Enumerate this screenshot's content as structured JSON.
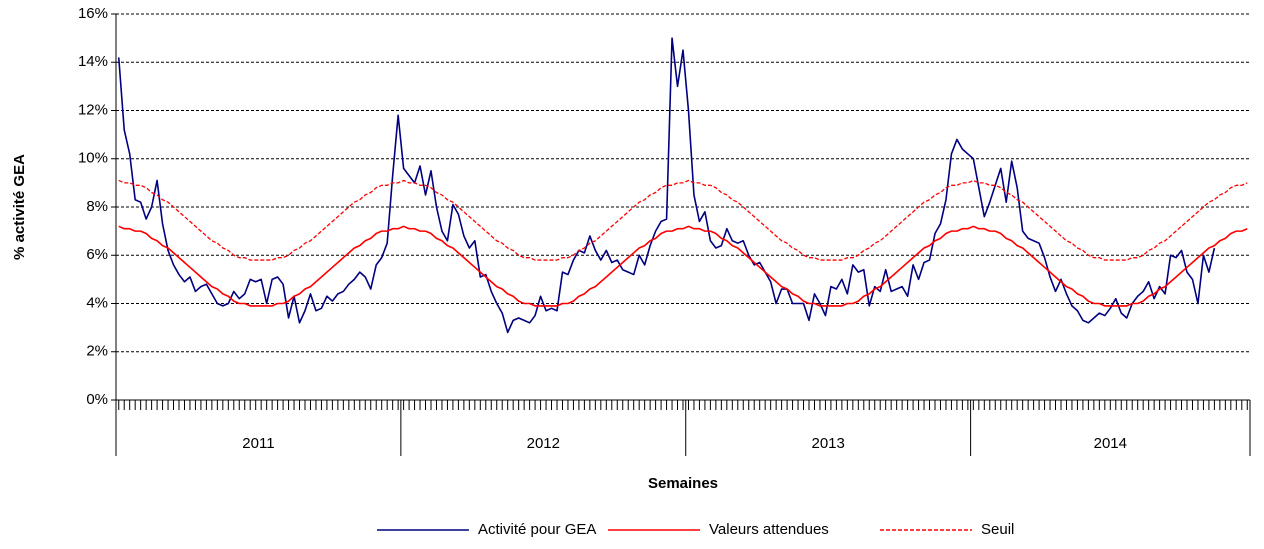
{
  "chart_data": {
    "type": "line",
    "y_label": "% activité GEA",
    "x_label": "Semaines",
    "ylim": [
      0,
      16
    ],
    "yticks": [
      {
        "value": 0,
        "label": "0%"
      },
      {
        "value": 2,
        "label": "2%"
      },
      {
        "value": 4,
        "label": "4%"
      },
      {
        "value": 6,
        "label": "6%"
      },
      {
        "value": 8,
        "label": "8%"
      },
      {
        "value": 10,
        "label": "10%"
      },
      {
        "value": 12,
        "label": "12%"
      },
      {
        "value": 14,
        "label": "14%"
      },
      {
        "value": 16,
        "label": "16%"
      }
    ],
    "grid": true,
    "legend": "bottom",
    "groups": [
      {
        "label": "2011",
        "count": 52
      },
      {
        "label": "2012",
        "count": 52
      },
      {
        "label": "2013",
        "count": 52
      },
      {
        "label": "2014",
        "count": 51
      }
    ],
    "categories": [
      null,
      null,
      null,
      null,
      null,
      null,
      null,
      null,
      null,
      null,
      null,
      null,
      null,
      null,
      null,
      null,
      null,
      null,
      null,
      null,
      null,
      null,
      null,
      null,
      null,
      null,
      null,
      null,
      null,
      null,
      null,
      null,
      null,
      null,
      null,
      null,
      null,
      null,
      null,
      null,
      null,
      null,
      null,
      null,
      null,
      null,
      null,
      null,
      null,
      null,
      null,
      null,
      null,
      null,
      null,
      null,
      null,
      null,
      null,
      null,
      null,
      null,
      null,
      null,
      null,
      null,
      null,
      null,
      null,
      null,
      null,
      null,
      null,
      null,
      null,
      null,
      null,
      null,
      null,
      null,
      null,
      null,
      null,
      null,
      null,
      null,
      null,
      null,
      null,
      null,
      null,
      null,
      null,
      null,
      null,
      null,
      null,
      null,
      null,
      null,
      null,
      null,
      null,
      null,
      null,
      null,
      null,
      null,
      null,
      null,
      null,
      null,
      null,
      null,
      null,
      null,
      null,
      null,
      null,
      null,
      null,
      null,
      null,
      null,
      null,
      null,
      null,
      null,
      null,
      null,
      null,
      null,
      null,
      null,
      null,
      null,
      null,
      null,
      null,
      null,
      null,
      null,
      null,
      null,
      null,
      null,
      null,
      null,
      null,
      null,
      null,
      null,
      null,
      null,
      null,
      null,
      null,
      null,
      null,
      null,
      null,
      null,
      null,
      null,
      null,
      null,
      null,
      null,
      null,
      null,
      null,
      null,
      null,
      null,
      null,
      null,
      null,
      null,
      null,
      null,
      null,
      null,
      null,
      null,
      null,
      null,
      null,
      null,
      null,
      null,
      null,
      null,
      null,
      null,
      null,
      null,
      null,
      null,
      null,
      null,
      null,
      null,
      null,
      null,
      null,
      null,
      null
    ],
    "series": [
      {
        "name": "Activité pour GEA",
        "color": "#000080",
        "style": "solid",
        "values": [
          14.2,
          11.2,
          10.2,
          8.3,
          8.2,
          7.5,
          8.0,
          9.1,
          7.3,
          6.2,
          5.6,
          5.2,
          4.9,
          5.1,
          4.5,
          4.7,
          4.8,
          4.4,
          4.0,
          3.9,
          4.0,
          4.5,
          4.2,
          4.4,
          5.0,
          4.9,
          5.0,
          4.0,
          5.0,
          5.1,
          4.8,
          3.4,
          4.3,
          3.2,
          3.7,
          4.4,
          3.7,
          3.8,
          4.3,
          4.1,
          4.4,
          4.5,
          4.8,
          5.0,
          5.3,
          5.1,
          4.6,
          5.6,
          5.9,
          6.5,
          9.3,
          11.8,
          9.6,
          9.3,
          9.0,
          9.7,
          8.5,
          9.5,
          8.0,
          7.0,
          6.6,
          8.1,
          7.7,
          6.8,
          6.3,
          6.6,
          5.1,
          5.2,
          4.5,
          4.0,
          3.6,
          2.8,
          3.3,
          3.4,
          3.3,
          3.2,
          3.5,
          4.3,
          3.7,
          3.8,
          3.7,
          5.3,
          5.2,
          5.8,
          6.2,
          6.1,
          6.8,
          6.2,
          5.8,
          6.2,
          5.7,
          5.8,
          5.4,
          5.3,
          5.2,
          6.0,
          5.6,
          6.4,
          7.0,
          7.4,
          7.5,
          15.0,
          13.0,
          14.5,
          12.0,
          8.5,
          7.4,
          7.8,
          6.6,
          6.3,
          6.4,
          7.1,
          6.6,
          6.5,
          6.6,
          6.0,
          5.6,
          5.7,
          5.3,
          4.9,
          4.0,
          4.6,
          4.6,
          4.0,
          4.0,
          4.0,
          3.3,
          4.4,
          4.0,
          3.5,
          4.7,
          4.6,
          5.0,
          4.4,
          5.6,
          5.3,
          5.4,
          3.9,
          4.7,
          4.5,
          5.4,
          4.5,
          4.6,
          4.7,
          4.3,
          5.6,
          5.0,
          5.7,
          5.8,
          6.9,
          7.3,
          8.3,
          10.2,
          10.8,
          10.4,
          10.2,
          10.0,
          8.8,
          7.6,
          8.2,
          8.9,
          9.6,
          8.2,
          9.9,
          8.8,
          7.0,
          6.7,
          6.6,
          6.5,
          5.9,
          5.1,
          4.5,
          5.0,
          4.4,
          3.9,
          3.7,
          3.3,
          3.2,
          3.4,
          3.6,
          3.5,
          3.8,
          4.2,
          3.6,
          3.4,
          4.0,
          4.3,
          4.5,
          4.9,
          4.2,
          4.7,
          4.4,
          6.0,
          5.9,
          6.2,
          5.3,
          5.0,
          4.0,
          6.0,
          5.3,
          6.3,
          null,
          null,
          null,
          null,
          null,
          null
        ]
      },
      {
        "name": "Valeurs attendues",
        "color": "#ff0000",
        "style": "solid",
        "values": [
          7.2,
          7.1,
          7.1,
          7.0,
          7.0,
          6.9,
          6.7,
          6.6,
          6.4,
          6.3,
          6.1,
          5.9,
          5.7,
          5.5,
          5.3,
          5.1,
          4.9,
          4.7,
          4.6,
          4.4,
          4.3,
          4.1,
          4.0,
          4.0,
          3.9,
          3.9,
          3.9,
          3.9,
          3.9,
          4.0,
          4.0,
          4.1,
          4.3,
          4.4,
          4.6,
          4.7,
          4.9,
          5.1,
          5.3,
          5.5,
          5.7,
          5.9,
          6.1,
          6.3,
          6.4,
          6.6,
          6.7,
          6.9,
          7.0,
          7.0,
          7.1,
          7.1,
          7.2,
          7.1,
          7.1,
          7.0,
          7.0,
          6.9,
          6.7,
          6.6,
          6.4,
          6.3,
          6.1,
          5.9,
          5.7,
          5.5,
          5.3,
          5.1,
          4.9,
          4.7,
          4.6,
          4.4,
          4.3,
          4.1,
          4.0,
          4.0,
          3.9,
          3.9,
          3.9,
          3.9,
          3.9,
          4.0,
          4.0,
          4.1,
          4.3,
          4.4,
          4.6,
          4.7,
          4.9,
          5.1,
          5.3,
          5.5,
          5.7,
          5.9,
          6.1,
          6.3,
          6.4,
          6.6,
          6.7,
          6.9,
          7.0,
          7.0,
          7.1,
          7.1,
          7.2,
          7.1,
          7.1,
          7.0,
          7.0,
          6.9,
          6.7,
          6.6,
          6.4,
          6.3,
          6.1,
          5.9,
          5.7,
          5.5,
          5.3,
          5.1,
          4.9,
          4.7,
          4.6,
          4.4,
          4.3,
          4.1,
          4.0,
          4.0,
          3.9,
          3.9,
          3.9,
          3.9,
          3.9,
          4.0,
          4.0,
          4.1,
          4.3,
          4.4,
          4.6,
          4.7,
          4.9,
          5.1,
          5.3,
          5.5,
          5.7,
          5.9,
          6.1,
          6.3,
          6.4,
          6.6,
          6.7,
          6.9,
          7.0,
          7.0,
          7.1,
          7.1,
          7.2,
          7.1,
          7.1,
          7.0,
          7.0,
          6.9,
          6.7,
          6.6,
          6.4,
          6.3,
          6.1,
          5.9,
          5.7,
          5.5,
          5.3,
          5.1,
          4.9,
          4.7,
          4.6,
          4.4,
          4.3,
          4.1,
          4.0,
          4.0,
          3.9,
          3.9,
          3.9,
          3.9,
          3.9,
          4.0,
          4.0,
          4.1,
          4.3,
          4.4,
          4.6,
          4.7,
          4.9,
          5.1,
          5.3,
          5.5,
          5.7,
          5.9,
          6.1,
          6.3,
          6.4,
          6.6,
          6.7,
          6.9,
          7.0,
          7.0,
          7.1
        ]
      },
      {
        "name": "Seuil",
        "color": "#ff0000",
        "style": "dashed",
        "values": [
          9.1,
          9.0,
          9.0,
          8.9,
          8.9,
          8.8,
          8.6,
          8.5,
          8.3,
          8.2,
          8.0,
          7.8,
          7.6,
          7.4,
          7.2,
          7.0,
          6.8,
          6.6,
          6.5,
          6.3,
          6.2,
          6.0,
          5.9,
          5.9,
          5.8,
          5.8,
          5.8,
          5.8,
          5.8,
          5.9,
          5.9,
          6.0,
          6.2,
          6.3,
          6.5,
          6.6,
          6.8,
          7.0,
          7.2,
          7.4,
          7.6,
          7.8,
          8.0,
          8.2,
          8.3,
          8.5,
          8.6,
          8.8,
          8.9,
          8.9,
          9.0,
          9.0,
          9.1,
          9.0,
          9.0,
          8.9,
          8.9,
          8.8,
          8.6,
          8.5,
          8.3,
          8.2,
          8.0,
          7.8,
          7.6,
          7.4,
          7.2,
          7.0,
          6.8,
          6.6,
          6.5,
          6.3,
          6.2,
          6.0,
          5.9,
          5.9,
          5.8,
          5.8,
          5.8,
          5.8,
          5.8,
          5.9,
          5.9,
          6.0,
          6.2,
          6.3,
          6.5,
          6.6,
          6.8,
          7.0,
          7.2,
          7.4,
          7.6,
          7.8,
          8.0,
          8.2,
          8.3,
          8.5,
          8.6,
          8.8,
          8.9,
          8.9,
          9.0,
          9.0,
          9.1,
          9.0,
          9.0,
          8.9,
          8.9,
          8.8,
          8.6,
          8.5,
          8.3,
          8.2,
          8.0,
          7.8,
          7.6,
          7.4,
          7.2,
          7.0,
          6.8,
          6.6,
          6.5,
          6.3,
          6.2,
          6.0,
          5.9,
          5.9,
          5.8,
          5.8,
          5.8,
          5.8,
          5.8,
          5.9,
          5.9,
          6.0,
          6.2,
          6.3,
          6.5,
          6.6,
          6.8,
          7.0,
          7.2,
          7.4,
          7.6,
          7.8,
          8.0,
          8.2,
          8.3,
          8.5,
          8.6,
          8.8,
          8.9,
          8.9,
          9.0,
          9.0,
          9.1,
          9.0,
          9.0,
          8.9,
          8.9,
          8.8,
          8.6,
          8.5,
          8.3,
          8.2,
          8.0,
          7.8,
          7.6,
          7.4,
          7.2,
          7.0,
          6.8,
          6.6,
          6.5,
          6.3,
          6.2,
          6.0,
          5.9,
          5.9,
          5.8,
          5.8,
          5.8,
          5.8,
          5.8,
          5.9,
          5.9,
          6.0,
          6.2,
          6.3,
          6.5,
          6.6,
          6.8,
          7.0,
          7.2,
          7.4,
          7.6,
          7.8,
          8.0,
          8.2,
          8.3,
          8.5,
          8.6,
          8.8,
          8.9,
          8.9,
          9.0
        ]
      }
    ]
  }
}
